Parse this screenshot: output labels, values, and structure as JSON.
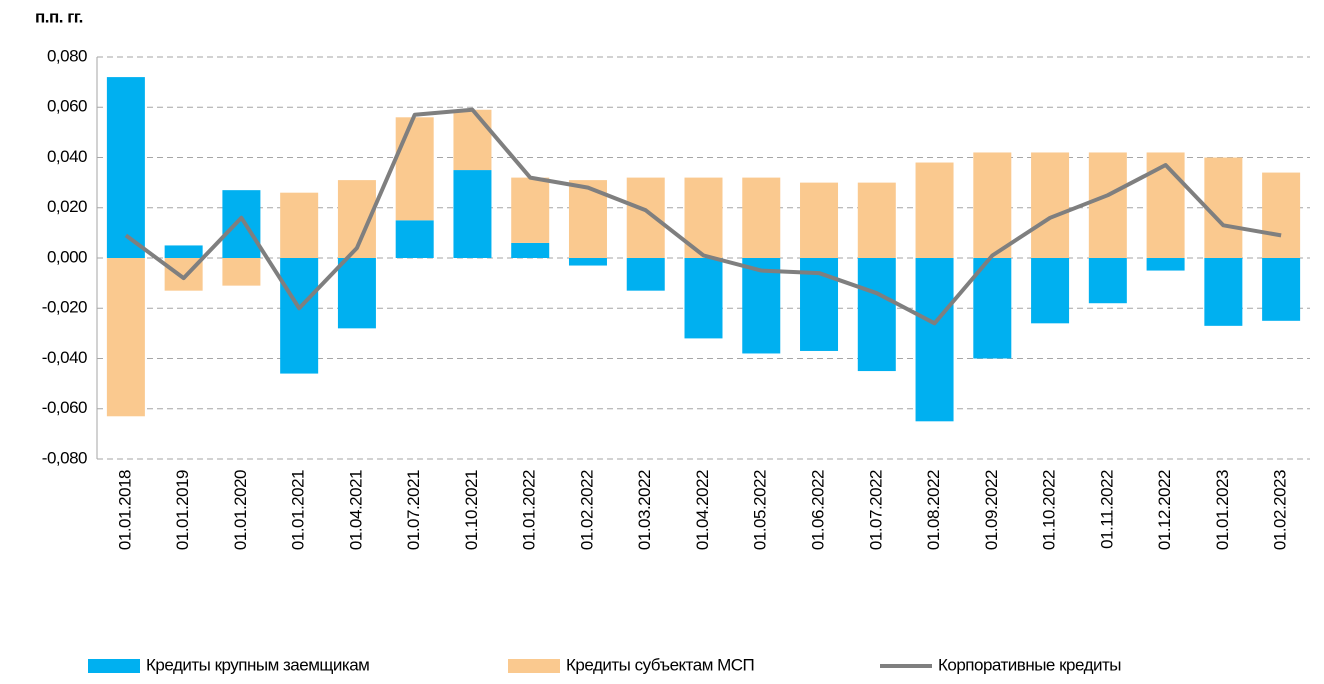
{
  "chart_data": {
    "type": "bar",
    "y_label": "п.п. гг.",
    "categories": [
      "01.01.2018",
      "01.01.2019",
      "01.01.2020",
      "01.01.2021",
      "01.04.2021",
      "01.07.2021",
      "01.10.2021",
      "01.01.2022",
      "01.02.2022",
      "01.03.2022",
      "01.04.2022",
      "01.05.2022",
      "01.06.2022",
      "01.07.2022",
      "01.08.2022",
      "01.09.2022",
      "01.10.2022",
      "01.11.2022",
      "01.12.2022",
      "01.01.2023",
      "01.02.2023"
    ],
    "series": [
      {
        "name": "Кредиты крупным заемщикам",
        "type": "bar",
        "color": "#00b0f0",
        "values": [
          0.072,
          0.005,
          0.027,
          -0.046,
          -0.028,
          0.015,
          0.035,
          0.006,
          -0.003,
          -0.013,
          -0.032,
          -0.038,
          -0.037,
          -0.045,
          -0.065,
          -0.04,
          -0.026,
          -0.018,
          -0.005,
          -0.027,
          -0.025
        ]
      },
      {
        "name": "Кредиты субъектам МСП",
        "type": "bar",
        "color": "#fac98f",
        "values": [
          -0.063,
          -0.013,
          -0.011,
          0.026,
          0.031,
          0.041,
          0.024,
          0.026,
          0.031,
          0.032,
          0.032,
          0.032,
          0.03,
          0.03,
          0.038,
          0.042,
          0.042,
          0.042,
          0.042,
          0.04,
          0.034
        ]
      },
      {
        "name": "Корпоративные кредиты",
        "type": "line",
        "color": "#7f7f7f",
        "values": [
          0.009,
          -0.008,
          0.016,
          -0.02,
          0.004,
          0.057,
          0.059,
          0.032,
          0.028,
          0.019,
          0.001,
          -0.005,
          -0.006,
          -0.014,
          -0.026,
          0.001,
          0.016,
          0.025,
          0.037,
          0.013,
          0.009
        ]
      }
    ],
    "ylim": [
      -0.08,
      0.08
    ],
    "yticks": [
      {
        "value": -0.08,
        "label": "-0,080"
      },
      {
        "value": -0.06,
        "label": "-0,060"
      },
      {
        "value": -0.04,
        "label": "-0,040"
      },
      {
        "value": -0.02,
        "label": "-0,020"
      },
      {
        "value": 0,
        "label": "0,000"
      },
      {
        "value": 0.02,
        "label": "0,020"
      },
      {
        "value": 0.04,
        "label": "0,040"
      },
      {
        "value": 0.06,
        "label": "0,060"
      },
      {
        "value": 0.08,
        "label": "0,080"
      }
    ],
    "grid": true,
    "stacked": true,
    "legend": "bottom"
  }
}
